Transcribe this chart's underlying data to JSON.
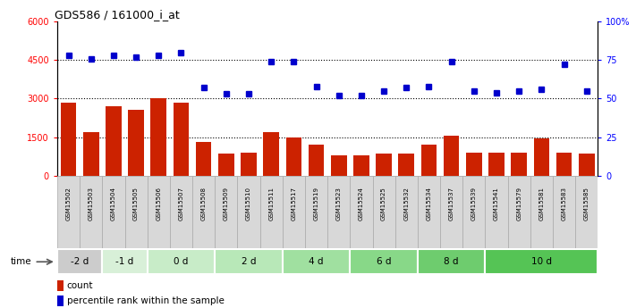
{
  "title": "GDS586 / 161000_i_at",
  "samples": [
    "GSM15502",
    "GSM15503",
    "GSM15504",
    "GSM15505",
    "GSM15506",
    "GSM15507",
    "GSM15508",
    "GSM15509",
    "GSM15510",
    "GSM15511",
    "GSM15517",
    "GSM15519",
    "GSM15523",
    "GSM15524",
    "GSM15525",
    "GSM15532",
    "GSM15534",
    "GSM15537",
    "GSM15539",
    "GSM15541",
    "GSM15579",
    "GSM15581",
    "GSM15583",
    "GSM15585"
  ],
  "counts": [
    2850,
    1700,
    2700,
    2550,
    3000,
    2850,
    1300,
    850,
    900,
    1700,
    1500,
    1200,
    800,
    800,
    850,
    850,
    1200,
    1550,
    900,
    900,
    900,
    1450,
    900,
    850
  ],
  "percentiles": [
    78,
    76,
    78,
    77,
    78,
    80,
    57,
    53,
    53,
    74,
    74,
    58,
    52,
    52,
    55,
    57,
    58,
    74,
    55,
    54,
    55,
    56,
    72,
    55
  ],
  "time_groups": [
    {
      "label": "-2 d",
      "start": 0,
      "end": 2,
      "color": "#d0eed0"
    },
    {
      "label": "-1 d",
      "start": 2,
      "end": 4,
      "color": "#c0e8c0"
    },
    {
      "label": "0 d",
      "start": 4,
      "end": 7,
      "color": "#b0e4b0"
    },
    {
      "label": "2 d",
      "start": 7,
      "end": 10,
      "color": "#98dc98"
    },
    {
      "label": "4 d",
      "start": 10,
      "end": 13,
      "color": "#80d480"
    },
    {
      "label": "6 d",
      "start": 13,
      "end": 16,
      "color": "#68cc68"
    },
    {
      "label": "8 d",
      "start": 16,
      "end": 19,
      "color": "#50c450"
    },
    {
      "label": "10 d",
      "start": 19,
      "end": 24,
      "color": "#38bc38"
    }
  ],
  "bar_color": "#cc2200",
  "dot_color": "#0000cc",
  "ylim_left": [
    0,
    6000
  ],
  "ylim_right": [
    0,
    100
  ],
  "yticks_left": [
    0,
    1500,
    3000,
    4500,
    6000
  ],
  "yticks_right": [
    0,
    25,
    50,
    75,
    100
  ],
  "bg_color": "#ffffff",
  "cell_bg": "#d8d8d8",
  "cell_border": "#aaaaaa"
}
